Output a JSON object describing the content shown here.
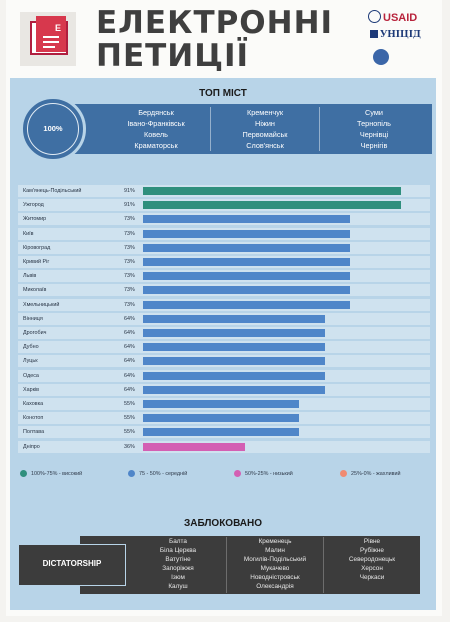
{
  "header": {
    "title_line1": "ЕЛЕКТРОННІ",
    "title_line2": "ПЕТИЦІЇ",
    "logo_icon": "document-icon",
    "logo_mark": "E",
    "partner1": "USAID",
    "partner2": "УНІЦІД",
    "partner3_icon": "partner-logo-icon"
  },
  "top_cities": {
    "title": "ТОП МІСТ",
    "percent": "100%",
    "columns": [
      [
        "Бердянськ",
        "Івано-Франківськ",
        "Ковель",
        "Краматорськ"
      ],
      [
        "Кременчук",
        "Ніжин",
        "Первомайськ",
        "Слов'янськ"
      ],
      [
        "Суми",
        "Тернопіль",
        "Чернівці",
        "Чернігів"
      ]
    ]
  },
  "chart_data": {
    "type": "bar",
    "orientation": "horizontal",
    "xlim": [
      0,
      100
    ],
    "categories": [
      "Кам'янець-Подільський",
      "Ужгород",
      "Житомир",
      "Київ",
      "Кіровоград",
      "Кривий Ріг",
      "Львів",
      "Миколаїв",
      "Хмельницький",
      "Вінниця",
      "Дрогобич",
      "Дубно",
      "Луцьк",
      "Одеса",
      "Харків",
      "Каховка",
      "Конотоп",
      "Полтава",
      "Дніпро"
    ],
    "labels": [
      "91%",
      "91%",
      "73%",
      "73%",
      "73%",
      "73%",
      "73%",
      "73%",
      "73%",
      "64%",
      "64%",
      "64%",
      "64%",
      "64%",
      "64%",
      "55%",
      "55%",
      "55%",
      "36%"
    ],
    "values": [
      91,
      91,
      73,
      73,
      73,
      73,
      73,
      73,
      73,
      64,
      64,
      64,
      64,
      64,
      64,
      55,
      55,
      55,
      36
    ],
    "colors": [
      "#2f8f7d",
      "#2f8f7d",
      "#4f86c9",
      "#4f86c9",
      "#4f86c9",
      "#4f86c9",
      "#4f86c9",
      "#4f86c9",
      "#4f86c9",
      "#4f86c9",
      "#4f86c9",
      "#4f86c9",
      "#4f86c9",
      "#4f86c9",
      "#4f86c9",
      "#4f86c9",
      "#4f86c9",
      "#4f86c9",
      "#d35fb3"
    ],
    "legend": [
      {
        "label": "100%-75% - високий",
        "color": "#2f8f7d"
      },
      {
        "label": "75 - 50% - середній",
        "color": "#4f86c9"
      },
      {
        "label": "50%-25% - низький",
        "color": "#d35fb3"
      },
      {
        "label": "25%-0% - жахливий",
        "color": "#f08a72"
      }
    ]
  },
  "blocked": {
    "title": "ЗАБЛОКОВАНО",
    "tag": "DICTATORSHIP",
    "columns": [
      [
        "Балта",
        "Біла Церква",
        "Ватутіне",
        "Запоріжжя",
        "Ізюм",
        "Калуш"
      ],
      [
        "Кременець",
        "Малин",
        "Могилів-Подільський",
        "Мукачево",
        "Новодністровськ",
        "Олександрія"
      ],
      [
        "Рівне",
        "Рубіжне",
        "Северодонецьк",
        "Херсон",
        "Черкаси"
      ]
    ]
  }
}
